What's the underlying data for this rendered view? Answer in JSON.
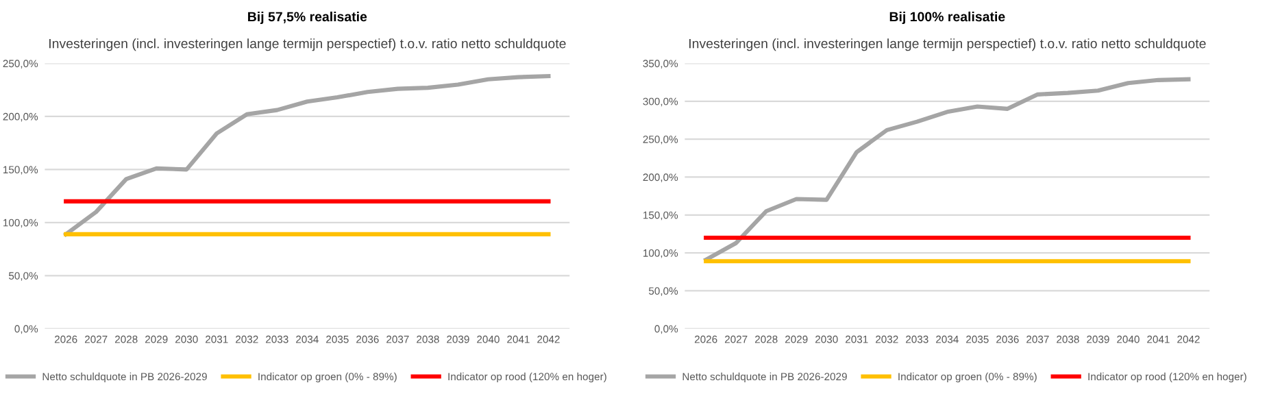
{
  "chart_data": [
    {
      "type": "line",
      "title": "Bij 57,5% realisatie",
      "subtitle": "Investeringen (incl. investeringen lange termijn perspectief) t.o.v. ratio netto schuldquote",
      "categories": [
        "2026",
        "2027",
        "2028",
        "2029",
        "2030",
        "2031",
        "2032",
        "2033",
        "2034",
        "2035",
        "2036",
        "2037",
        "2038",
        "2039",
        "2040",
        "2041",
        "2042"
      ],
      "series": [
        {
          "name": "Netto schuldquote in PB 2026-2029",
          "color": "#a5a5a5",
          "values": [
            89,
            110,
            141,
            151,
            150,
            184,
            202,
            206,
            214,
            218,
            223,
            226,
            227,
            230,
            235,
            237,
            238
          ]
        },
        {
          "name": "Indicator op groen (0% - 89%)",
          "color": "#ffc000",
          "values": [
            89,
            89,
            89,
            89,
            89,
            89,
            89,
            89,
            89,
            89,
            89,
            89,
            89,
            89,
            89,
            89,
            89
          ]
        },
        {
          "name": "Indicator op rood (120% en hoger)",
          "color": "#ff0000",
          "values": [
            120,
            120,
            120,
            120,
            120,
            120,
            120,
            120,
            120,
            120,
            120,
            120,
            120,
            120,
            120,
            120,
            120
          ]
        }
      ],
      "ylim": [
        0,
        250
      ],
      "yticks": [
        {
          "value": 0,
          "label": "0,0%"
        },
        {
          "value": 50,
          "label": "50,0%"
        },
        {
          "value": 100,
          "label": "100,0%"
        },
        {
          "value": 150,
          "label": "150,0%"
        },
        {
          "value": 200,
          "label": "200,0%"
        },
        {
          "value": 250,
          "label": "250,0%"
        }
      ],
      "grid": "y",
      "legend": "bottom",
      "marker": "none",
      "line_style": "solid"
    },
    {
      "type": "line",
      "title": "Bij 100% realisatie",
      "subtitle": "Investeringen (incl. investeringen lange termijn perspectief) t.o.v. ratio netto schuldquote",
      "categories": [
        "2026",
        "2027",
        "2028",
        "2029",
        "2030",
        "2031",
        "2032",
        "2033",
        "2034",
        "2035",
        "2036",
        "2037",
        "2038",
        "2039",
        "2040",
        "2041",
        "2042"
      ],
      "series": [
        {
          "name": "Netto schuldquote in PB 2026-2029",
          "color": "#a5a5a5",
          "values": [
            91,
            113,
            155,
            171,
            170,
            233,
            262,
            273,
            286,
            293,
            290,
            309,
            311,
            314,
            324,
            328,
            329
          ]
        },
        {
          "name": "Indicator op groen (0% - 89%)",
          "color": "#ffc000",
          "values": [
            89,
            89,
            89,
            89,
            89,
            89,
            89,
            89,
            89,
            89,
            89,
            89,
            89,
            89,
            89,
            89,
            89
          ]
        },
        {
          "name": "Indicator op rood (120% en hoger)",
          "color": "#ff0000",
          "values": [
            120,
            120,
            120,
            120,
            120,
            120,
            120,
            120,
            120,
            120,
            120,
            120,
            120,
            120,
            120,
            120,
            120
          ]
        }
      ],
      "ylim": [
        0,
        350
      ],
      "yticks": [
        {
          "value": 0,
          "label": "0,0%"
        },
        {
          "value": 50,
          "label": "50,0%"
        },
        {
          "value": 100,
          "label": "100,0%"
        },
        {
          "value": 150,
          "label": "150,0%"
        },
        {
          "value": 200,
          "label": "200,0%"
        },
        {
          "value": 250,
          "label": "250,0%"
        },
        {
          "value": 300,
          "label": "300,0%"
        },
        {
          "value": 350,
          "label": "350,0%"
        }
      ],
      "grid": "y",
      "legend": "bottom",
      "marker": "none",
      "line_style": "solid"
    }
  ]
}
